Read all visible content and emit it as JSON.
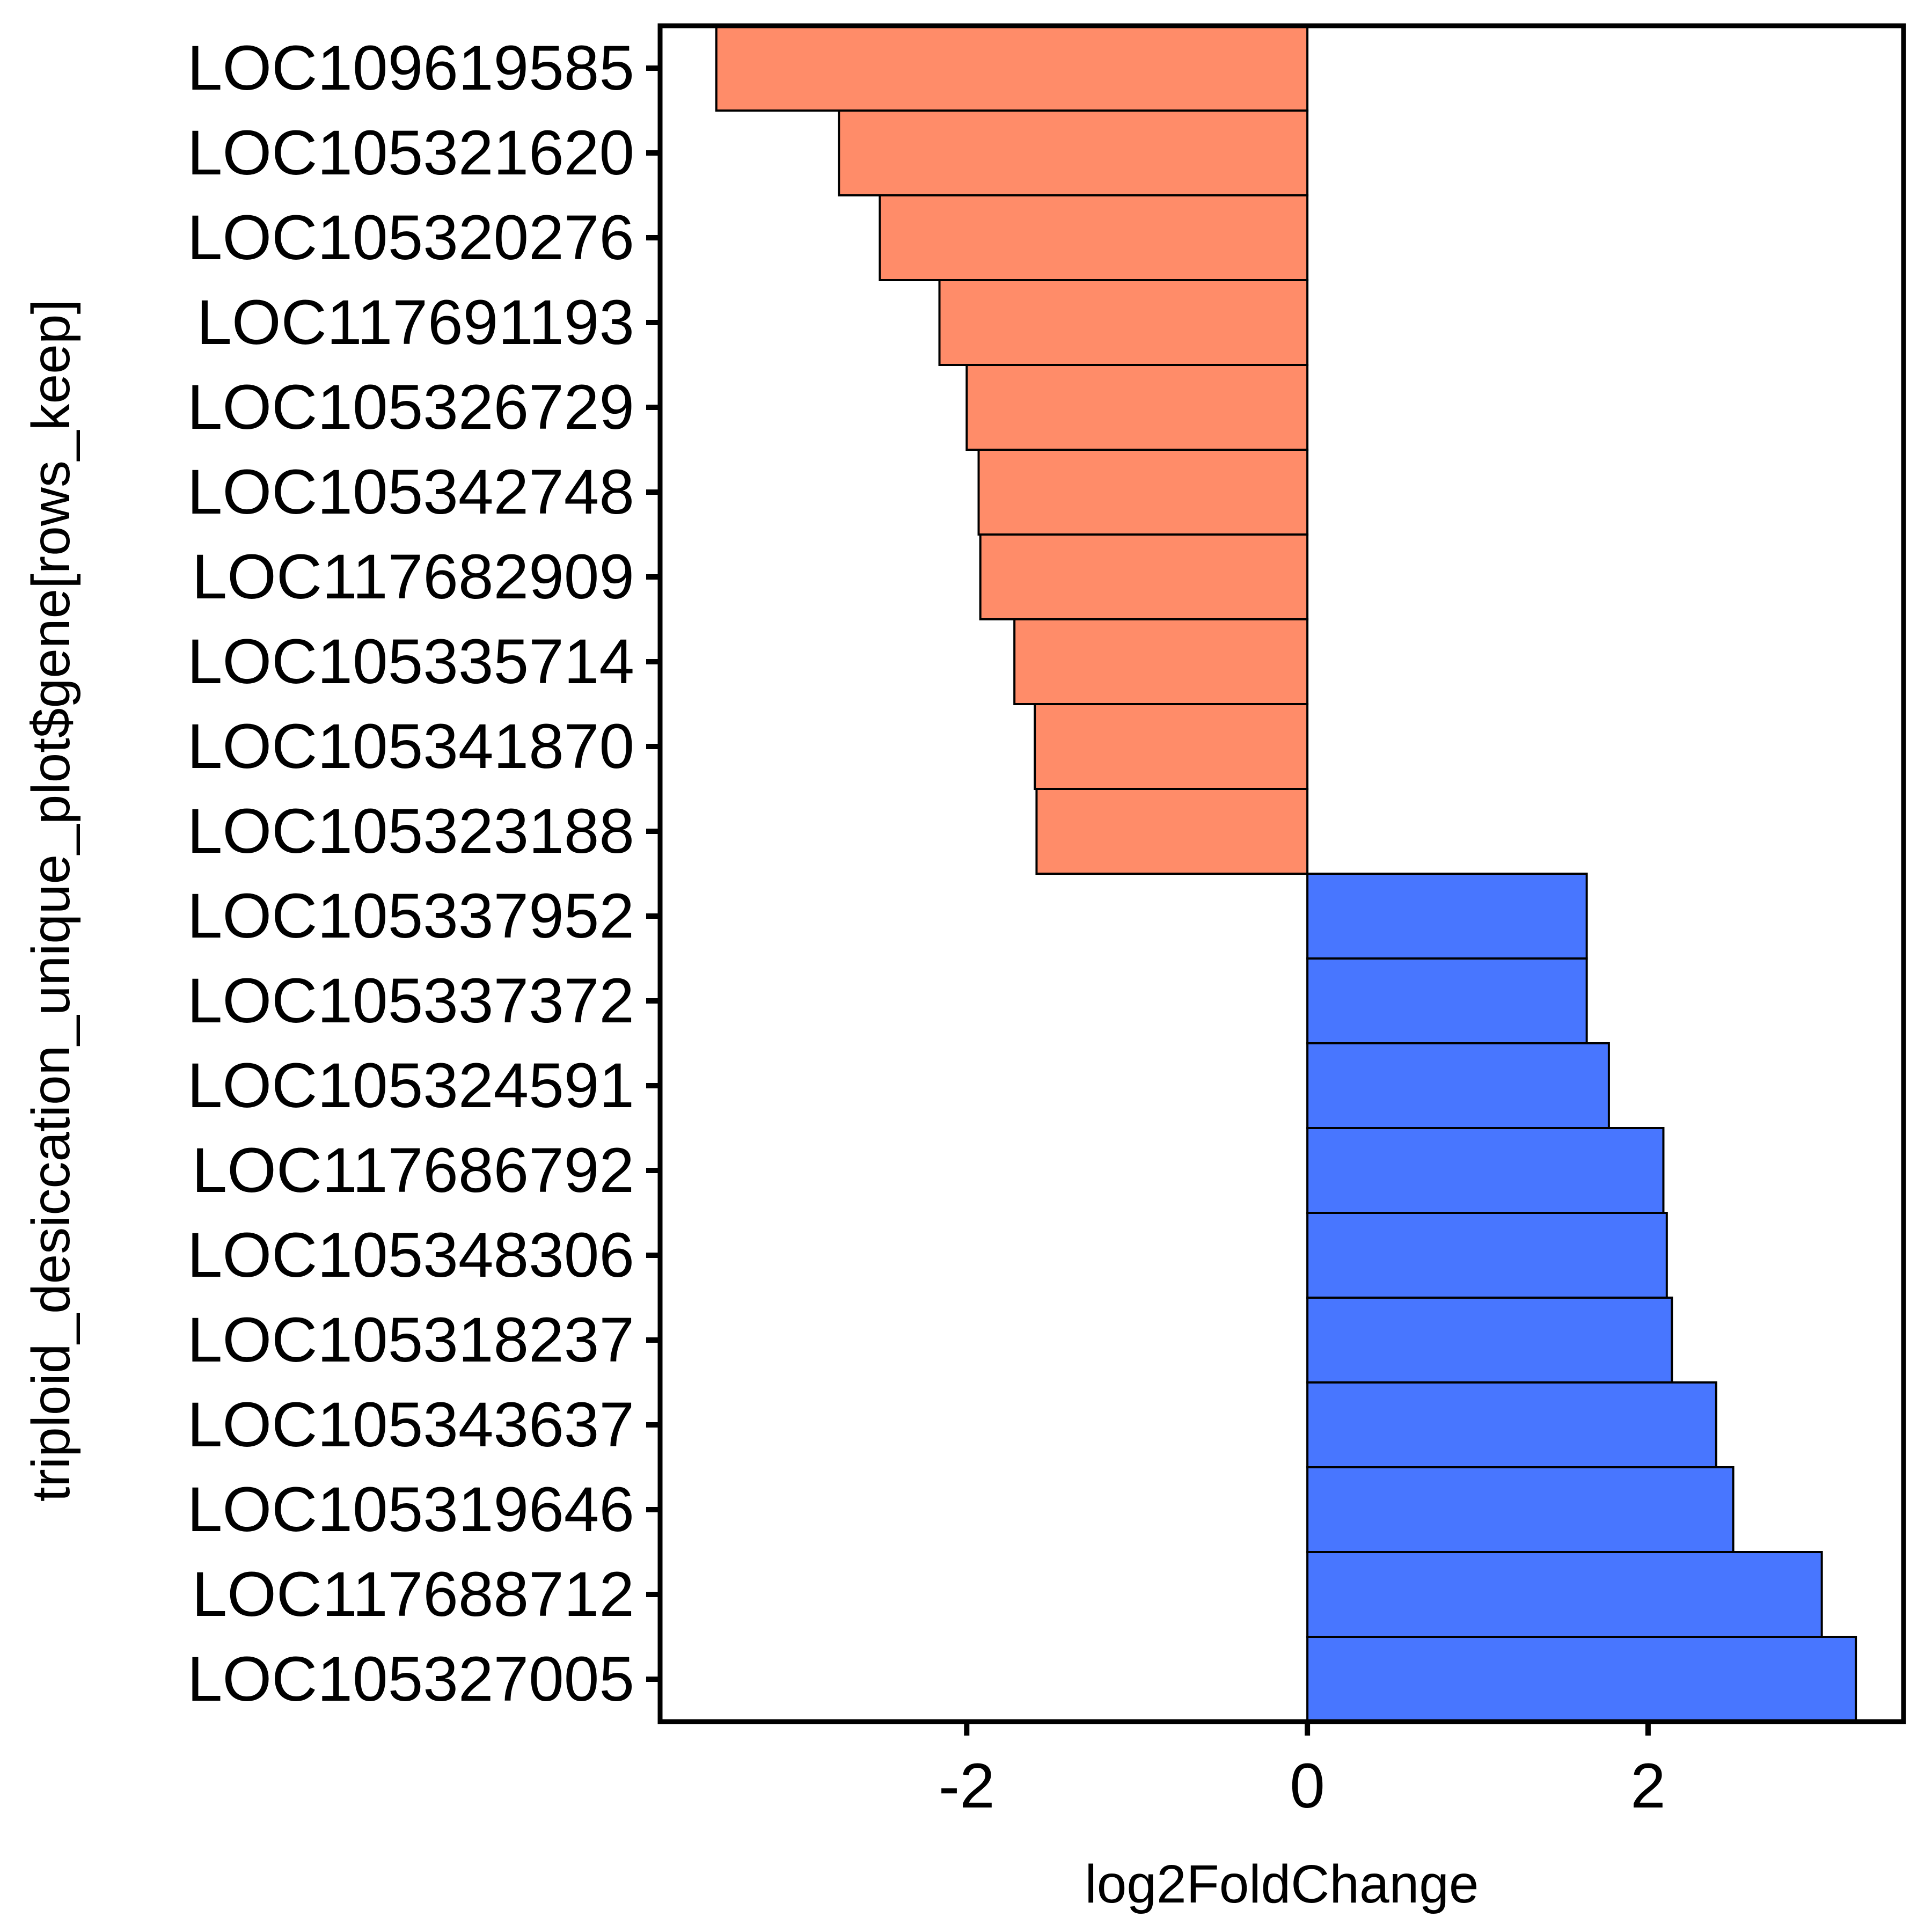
{
  "chart_data": {
    "type": "bar",
    "orientation": "horizontal",
    "title": "",
    "xlabel": "log2FoldChange",
    "ylabel": "triploid_desiccation_unique_plot$gene[rows_keep]",
    "xlim": [
      -3.8,
      3.5
    ],
    "xticks": [
      -2,
      0,
      2
    ],
    "xtick_labels": [
      "-2",
      "0",
      "2"
    ],
    "grid": false,
    "legend": "none",
    "colors": {
      "negative": "#FF8C69",
      "positive": "#4876FF",
      "bar_outline": "#000000",
      "panel_border": "#000000"
    },
    "categories": [
      "LOC109619585",
      "LOC105321620",
      "LOC105320276",
      "LOC117691193",
      "LOC105326729",
      "LOC105342748",
      "LOC117682909",
      "LOC105335714",
      "LOC105341870",
      "LOC105323188",
      "LOC105337952",
      "LOC105337372",
      "LOC105324591",
      "LOC117686792",
      "LOC105348306",
      "LOC105318237",
      "LOC105343637",
      "LOC105319646",
      "LOC117688712",
      "LOC105327005"
    ],
    "values": [
      -3.47,
      -2.75,
      -2.51,
      -2.16,
      -2.0,
      -1.93,
      -1.92,
      -1.72,
      -1.6,
      -1.59,
      1.64,
      1.64,
      1.77,
      2.09,
      2.11,
      2.14,
      2.4,
      2.5,
      3.02,
      3.22
    ]
  }
}
